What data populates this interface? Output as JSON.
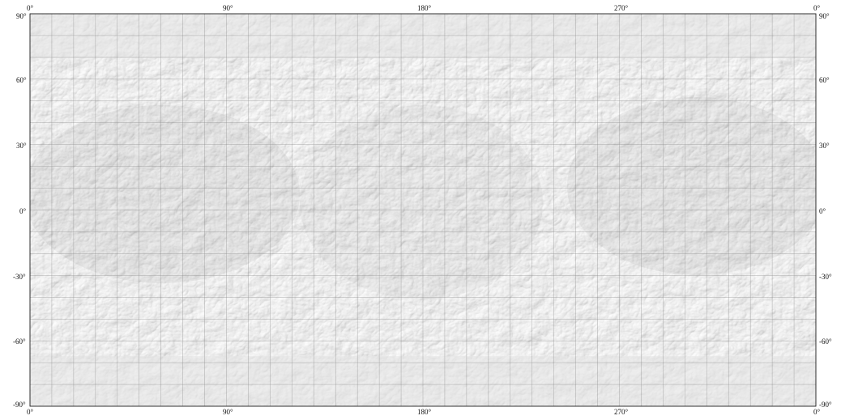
{
  "map": {
    "type": "simple-cylindrical-grid",
    "colors": {
      "background": "#ffffff",
      "terrain_base": "#d8d8d8",
      "grid_line": "#8c8c8c",
      "border": "#000000",
      "label": "#111111"
    },
    "longitude_labels": [
      "0°",
      "90°",
      "180°",
      "270°",
      "0°"
    ],
    "latitude_labels": [
      "90°",
      "60°",
      "30°",
      "0°",
      "-30°",
      "-60°",
      "-90°"
    ],
    "grid_spacing_degrees": 10
  }
}
